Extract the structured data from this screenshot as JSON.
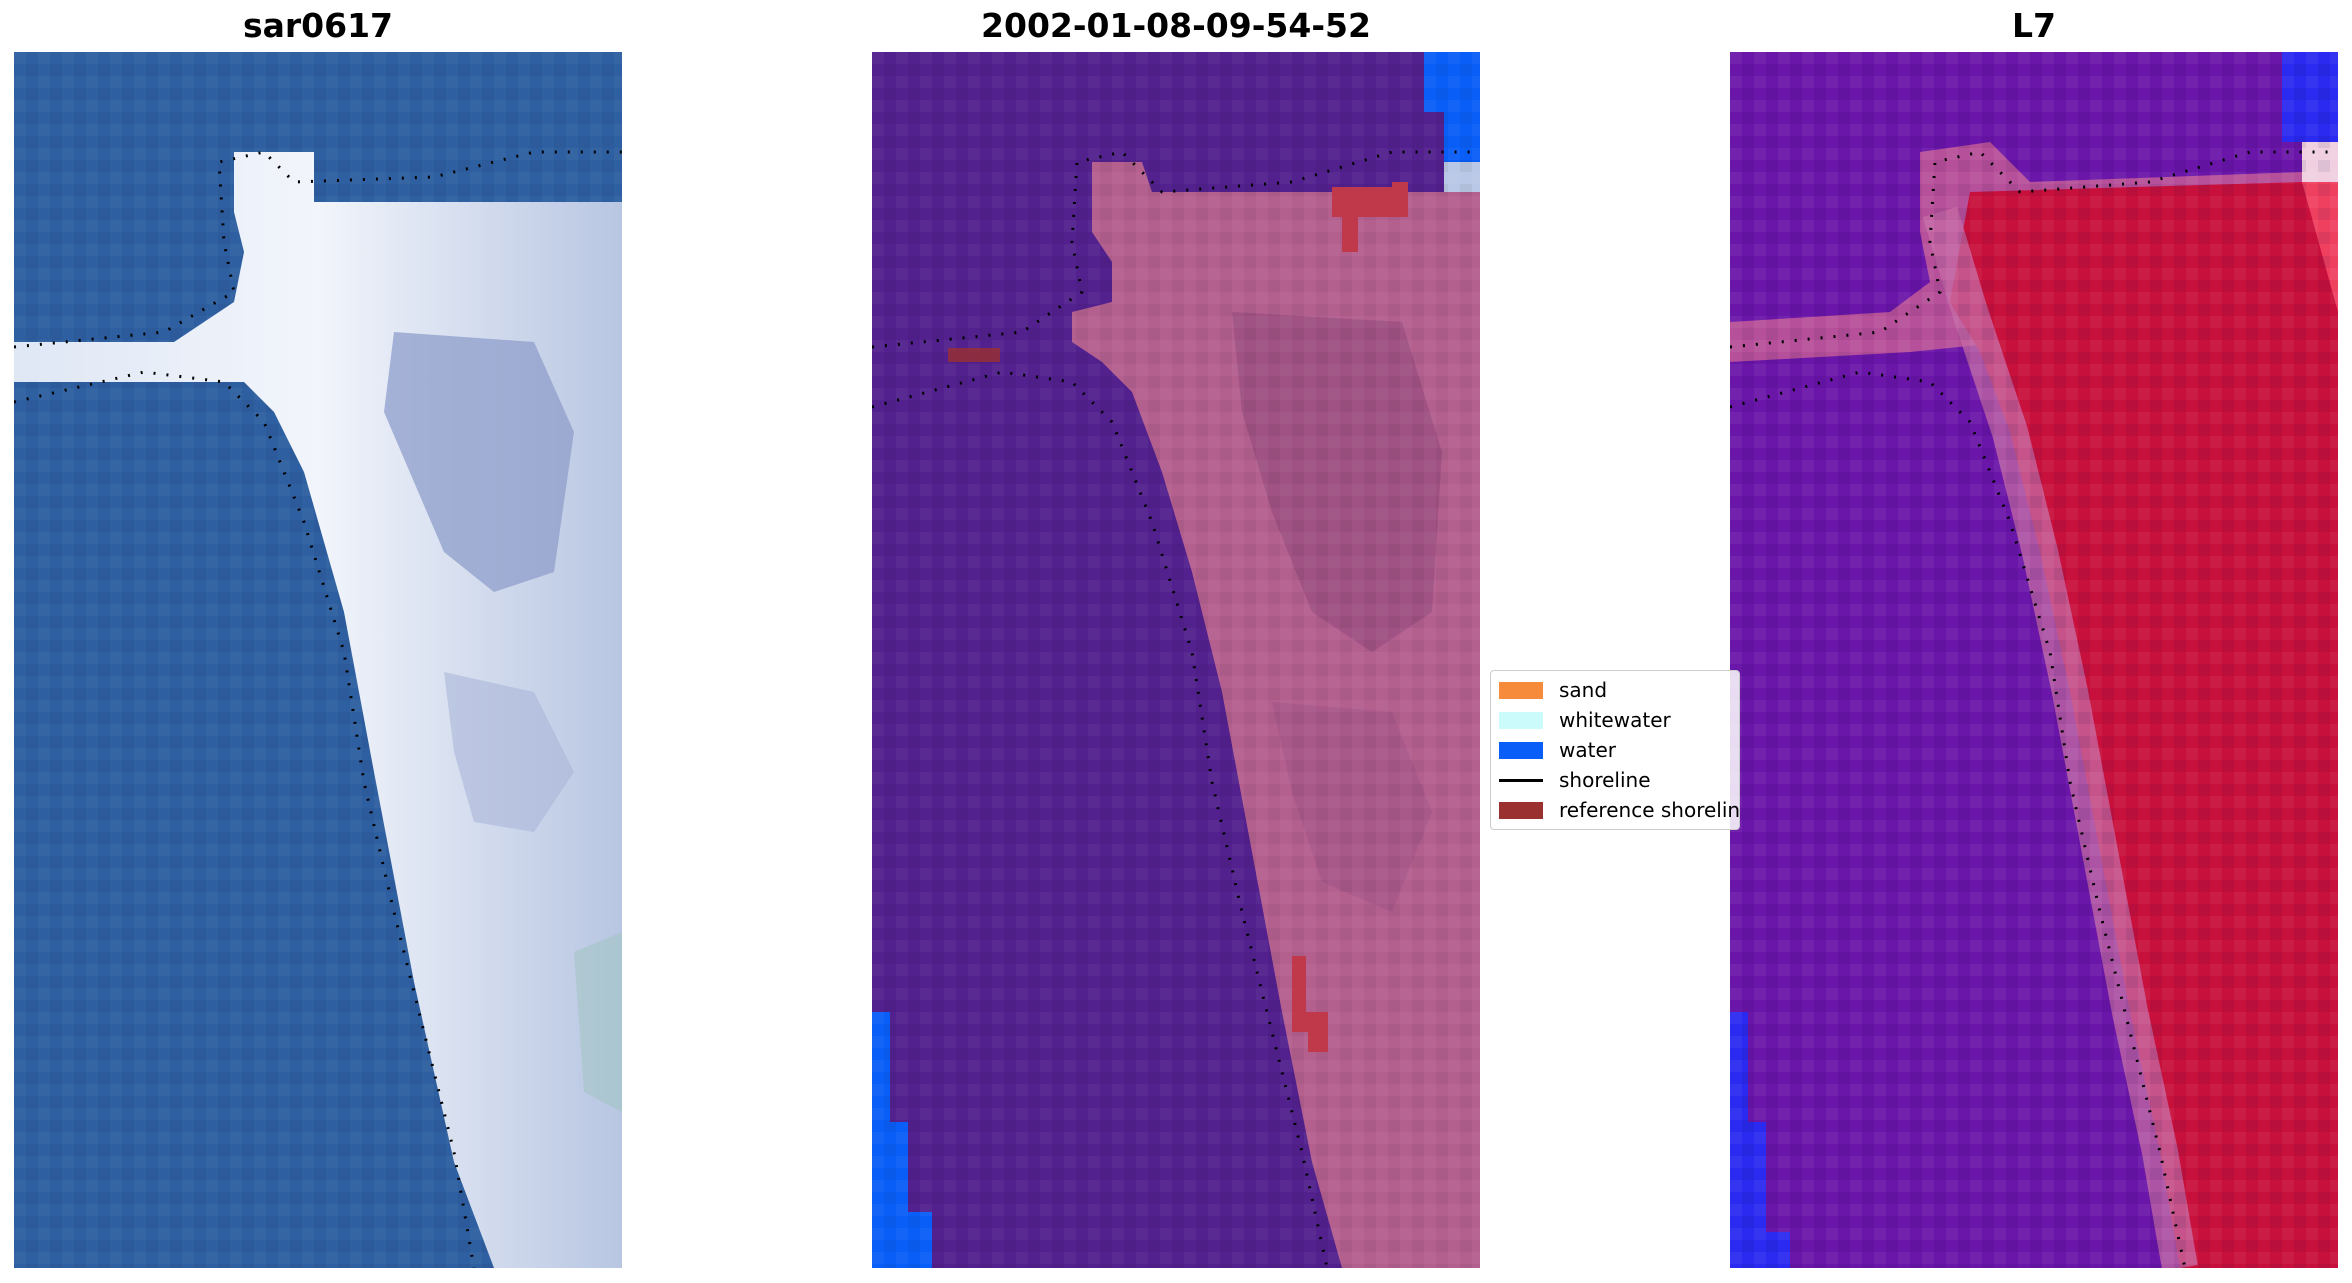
{
  "panels": [
    {
      "title": "sar0617"
    },
    {
      "title": "2002-01-08-09-54-52"
    },
    {
      "title": "L7"
    }
  ],
  "legend": {
    "items": [
      {
        "label": "sand",
        "color": "#f58b3b"
      },
      {
        "label": "whitewater",
        "color": "#ccfbfb"
      },
      {
        "label": "water",
        "color": "#0a5ef8"
      },
      {
        "label": "shoreline",
        "color": "#000000"
      },
      {
        "label": "reference shoreline",
        "color": "#9b3030"
      }
    ]
  },
  "colors": {
    "ocean_rgb": "#2e5fa0",
    "sand_rgb": "#e8eef6",
    "classified_bg": "#52218e",
    "classified_sand": "#b4608f",
    "classified_water": "#0a5ef8",
    "index_bg": "#6a16a8",
    "index_sand": "#c8103c",
    "index_water": "#2a2af0"
  }
}
